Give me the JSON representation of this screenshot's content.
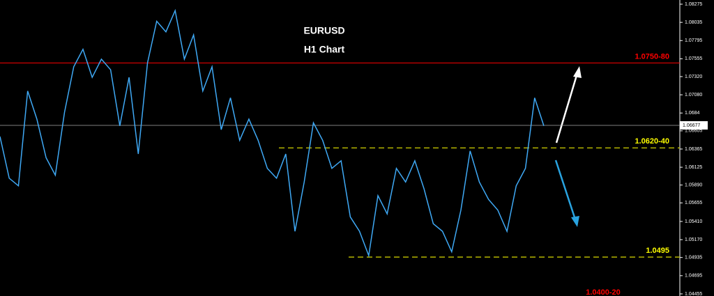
{
  "chart_data": {
    "type": "line",
    "title": "EURUSD",
    "subtitle": "H1 Chart",
    "categories": [
      null,
      null,
      null,
      null,
      null,
      null,
      null,
      null,
      null,
      null,
      null,
      null,
      null,
      null,
      null,
      null,
      null,
      null,
      null,
      null,
      null,
      null,
      null,
      null,
      null,
      null,
      null,
      null,
      null,
      null,
      null,
      null,
      null,
      null,
      null,
      null,
      null,
      null,
      null,
      null,
      null,
      null,
      null,
      null,
      null,
      null,
      null,
      null,
      null,
      null,
      null,
      null,
      null,
      null,
      null,
      null,
      null,
      null,
      null,
      null
    ],
    "series": [
      {
        "color": "#3fa9f5",
        "values": [
          1.0653,
          1.0598,
          1.0588,
          1.0713,
          1.0676,
          1.0625,
          1.0602,
          1.0685,
          1.0745,
          1.0768,
          1.0731,
          1.0755,
          1.0741,
          1.0667,
          1.0731,
          1.063,
          1.075,
          1.0805,
          1.0791,
          1.0819,
          1.0755,
          1.0787,
          1.0713,
          1.0745,
          1.0662,
          1.0704,
          1.0648,
          1.0676,
          1.0648,
          1.0611,
          1.0598,
          1.063,
          1.0528,
          1.0593,
          1.0671,
          1.0648,
          1.0611,
          1.0621,
          1.0547,
          1.0528,
          1.0496,
          1.0575,
          1.0551,
          1.0611,
          1.0593,
          1.0621,
          1.0584,
          1.0538,
          1.0528,
          1.0501,
          1.0556,
          1.0634,
          1.0593,
          1.057,
          1.0556,
          1.0528,
          1.0588,
          1.0611,
          1.0704,
          1.0667
        ]
      }
    ],
    "ylim": [
      1.04427,
      1.0833
    ],
    "yticks": [
      1.08275,
      1.08035,
      1.07795,
      1.07555,
      {
        "value": 1.0732,
        "label": "1.07320"
      },
      {
        "value": 1.0708,
        "label": "1.07080"
      },
      1.0684,
      1.06605,
      1.06365,
      1.06125,
      {
        "value": 1.0589,
        "label": "1.05890"
      },
      1.05655,
      {
        "value": 1.0541,
        "label": "1.05410"
      },
      {
        "value": 1.0517,
        "label": "1.05170"
      },
      1.04935,
      1.04695,
      1.04455
    ],
    "current_price": 1.06677,
    "levels": [
      {
        "label": "1.0750-80",
        "value": 1.075,
        "color": "#ff0000"
      },
      {
        "label": "1.0620-40",
        "value": 1.0638,
        "color": "#ffff00"
      },
      {
        "label": "1.0495",
        "value": 1.0494,
        "color": "#ffff00"
      }
    ],
    "bottom_label": "1.0400-20"
  }
}
